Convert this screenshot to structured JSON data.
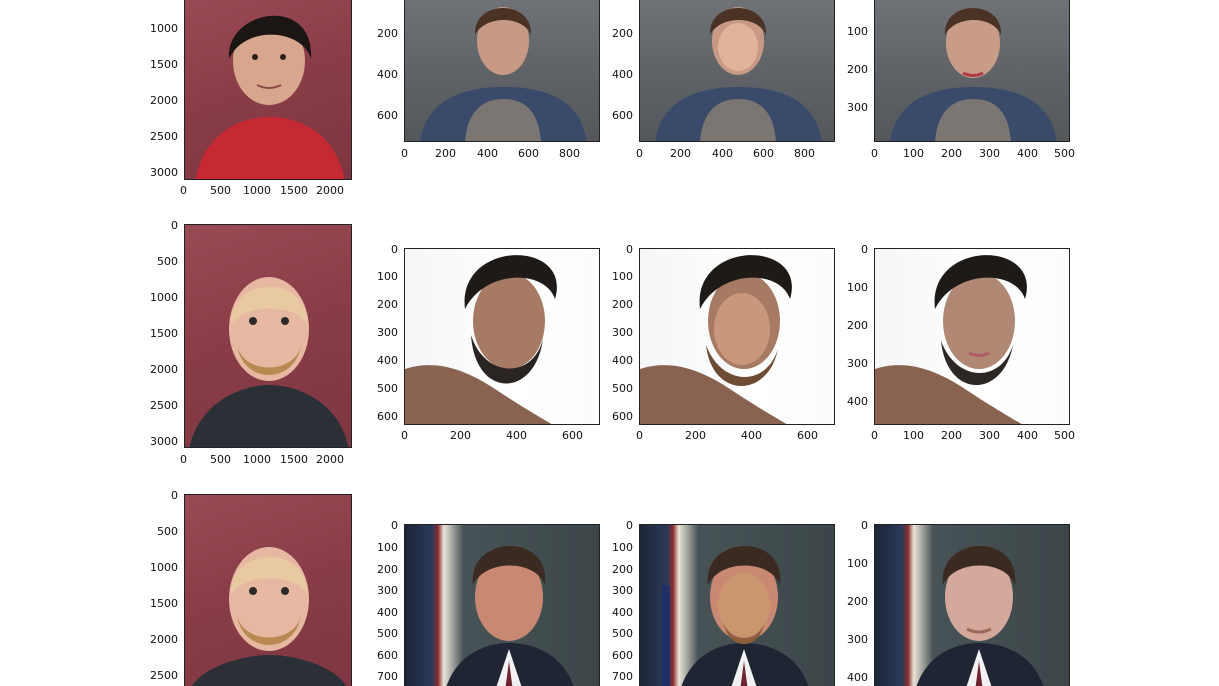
{
  "rows": [
    {
      "panels": [
        {
          "name": "source-photo",
          "x_ticks": [
            "0",
            "500",
            "1000",
            "1500",
            "2000"
          ],
          "y_ticks": [
            "1000",
            "1500",
            "2000",
            "2500",
            "3000"
          ]
        },
        {
          "name": "target-photo",
          "x_ticks": [
            "0",
            "200",
            "400",
            "600",
            "800"
          ],
          "y_ticks": [
            "200",
            "400",
            "600"
          ]
        },
        {
          "name": "swapped-photo",
          "x_ticks": [
            "0",
            "200",
            "400",
            "600",
            "800"
          ],
          "y_ticks": [
            "200",
            "400",
            "600"
          ]
        },
        {
          "name": "blended-photo",
          "x_ticks": [
            "0",
            "100",
            "200",
            "300",
            "400",
            "500"
          ],
          "y_ticks": [
            "100",
            "200",
            "300"
          ]
        }
      ]
    },
    {
      "panels": [
        {
          "name": "source-photo",
          "x_ticks": [
            "0",
            "500",
            "1000",
            "1500",
            "2000"
          ],
          "y_ticks": [
            "0",
            "500",
            "1000",
            "1500",
            "2000",
            "2500",
            "3000"
          ]
        },
        {
          "name": "target-photo",
          "x_ticks": [
            "0",
            "200",
            "400",
            "600"
          ],
          "y_ticks": [
            "0",
            "100",
            "200",
            "300",
            "400",
            "500",
            "600"
          ]
        },
        {
          "name": "swapped-photo",
          "x_ticks": [
            "0",
            "200",
            "400",
            "600"
          ],
          "y_ticks": [
            "0",
            "100",
            "200",
            "300",
            "400",
            "500",
            "600"
          ]
        },
        {
          "name": "blended-photo",
          "x_ticks": [
            "0",
            "100",
            "200",
            "300",
            "400",
            "500"
          ],
          "y_ticks": [
            "0",
            "100",
            "200",
            "300",
            "400"
          ]
        }
      ]
    },
    {
      "panels": [
        {
          "name": "source-photo",
          "x_ticks": [],
          "y_ticks": [
            "0",
            "500",
            "1000",
            "1500",
            "2000",
            "2500"
          ]
        },
        {
          "name": "target-photo",
          "x_ticks": [],
          "y_ticks": [
            "0",
            "100",
            "200",
            "300",
            "400",
            "500",
            "600",
            "700"
          ]
        },
        {
          "name": "swapped-photo",
          "x_ticks": [],
          "y_ticks": [
            "0",
            "100",
            "200",
            "300",
            "400",
            "500",
            "600",
            "700"
          ]
        },
        {
          "name": "blended-photo",
          "x_ticks": [],
          "y_ticks": [
            "0",
            "100",
            "200",
            "300",
            "400"
          ]
        }
      ]
    }
  ]
}
